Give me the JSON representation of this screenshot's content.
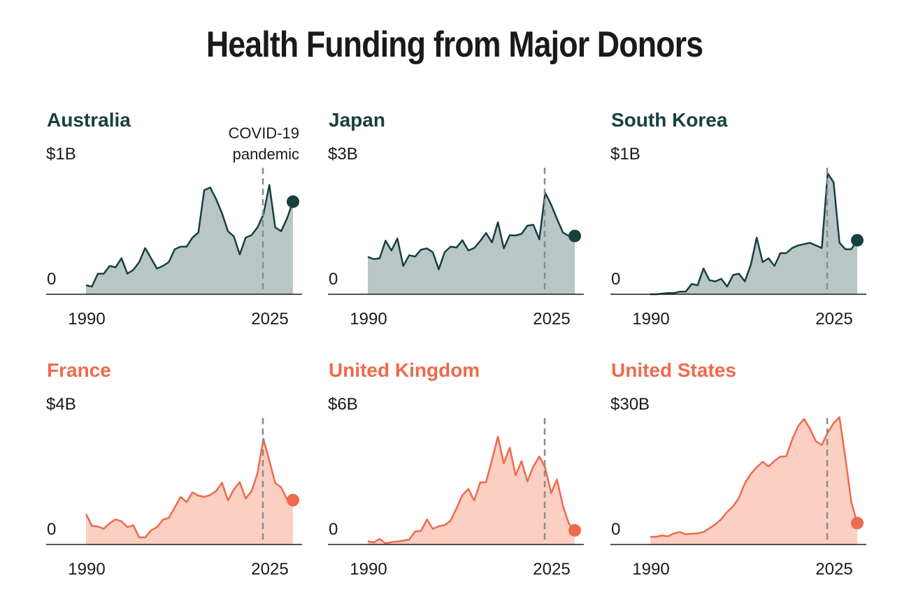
{
  "title": "Health Funding from Major Donors",
  "colors": {
    "dark_line": "#17403f",
    "dark_fill": "#b8c7c6",
    "orange_line": "#ee6a4c",
    "orange_fill": "#fccfc3",
    "guide": "#8c8c8c",
    "axis": "#1a1a1a"
  },
  "chart_data": [
    {
      "type": "area",
      "title": "Australia",
      "ymax_label": "$1B",
      "ymin_label": "0",
      "x_ticks": [
        "1990",
        "2025"
      ],
      "theme": "dark",
      "ylim": [
        0,
        1.0
      ],
      "annotation": {
        "x": 2020,
        "lines": [
          "COVID-19",
          "pandemic"
        ]
      },
      "x": [
        1990,
        1991,
        1992,
        1993,
        1994,
        1995,
        1996,
        1997,
        1998,
        1999,
        2000,
        2001,
        2002,
        2003,
        2004,
        2005,
        2006,
        2007,
        2008,
        2009,
        2010,
        2011,
        2012,
        2013,
        2014,
        2015,
        2016,
        2017,
        2018,
        2019,
        2020,
        2021,
        2022,
        2023,
        2024,
        2025
      ],
      "values": [
        0.07,
        0.06,
        0.16,
        0.16,
        0.22,
        0.21,
        0.28,
        0.16,
        0.19,
        0.25,
        0.36,
        0.28,
        0.2,
        0.22,
        0.25,
        0.35,
        0.37,
        0.37,
        0.44,
        0.48,
        0.81,
        0.83,
        0.74,
        0.63,
        0.49,
        0.45,
        0.31,
        0.44,
        0.46,
        0.52,
        0.62,
        0.85,
        0.52,
        0.49,
        0.59,
        0.72
      ]
    },
    {
      "type": "area",
      "title": "Japan",
      "ymax_label": "$3B",
      "ymin_label": "0",
      "x_ticks": [
        "1990",
        "2025"
      ],
      "theme": "dark",
      "ylim": [
        0,
        3.0
      ],
      "x": [
        1990,
        1991,
        1992,
        1993,
        1994,
        1995,
        1996,
        1997,
        1998,
        1999,
        2000,
        2001,
        2002,
        2003,
        2004,
        2005,
        2006,
        2007,
        2008,
        2009,
        2010,
        2011,
        2012,
        2013,
        2014,
        2015,
        2016,
        2017,
        2018,
        2019,
        2020,
        2021,
        2022,
        2023,
        2024,
        2025
      ],
      "values": [
        0.87,
        0.82,
        0.84,
        1.25,
        1.02,
        1.3,
        0.66,
        0.91,
        0.88,
        1.04,
        1.07,
        0.98,
        0.58,
        0.98,
        1.11,
        1.09,
        1.26,
        1.02,
        1.08,
        1.24,
        1.43,
        1.21,
        1.68,
        1.07,
        1.38,
        1.37,
        1.41,
        1.6,
        1.62,
        1.28,
        2.37,
        2.09,
        1.76,
        1.44,
        1.36,
        1.36
      ]
    },
    {
      "type": "area",
      "title": "South Korea",
      "ymax_label": "$1B",
      "ymin_label": "0",
      "x_ticks": [
        "1990",
        "2025"
      ],
      "theme": "dark",
      "ylim": [
        0,
        1.0
      ],
      "x": [
        1990,
        1991,
        1992,
        1993,
        1994,
        1995,
        1996,
        1997,
        1998,
        1999,
        2000,
        2001,
        2002,
        2003,
        2004,
        2005,
        2006,
        2007,
        2008,
        2009,
        2010,
        2011,
        2012,
        2013,
        2014,
        2015,
        2016,
        2017,
        2018,
        2019,
        2020,
        2021,
        2022,
        2023,
        2024,
        2025
      ],
      "values": [
        0.0,
        0.0,
        0.005,
        0.01,
        0.01,
        0.02,
        0.02,
        0.08,
        0.07,
        0.2,
        0.11,
        0.1,
        0.12,
        0.06,
        0.15,
        0.16,
        0.1,
        0.23,
        0.44,
        0.25,
        0.28,
        0.22,
        0.32,
        0.32,
        0.36,
        0.38,
        0.39,
        0.4,
        0.38,
        0.36,
        0.94,
        0.87,
        0.4,
        0.35,
        0.35,
        0.42
      ]
    },
    {
      "type": "area",
      "title": "France",
      "ymax_label": "$4B",
      "ymin_label": "0",
      "x_ticks": [
        "1990",
        "2025"
      ],
      "theme": "orange",
      "ylim": [
        0,
        4.0
      ],
      "x": [
        1990,
        1991,
        1992,
        1993,
        1994,
        1995,
        1996,
        1997,
        1998,
        1999,
        2000,
        2001,
        2002,
        2003,
        2004,
        2005,
        2006,
        2007,
        2008,
        2009,
        2010,
        2011,
        2012,
        2013,
        2014,
        2015,
        2016,
        2017,
        2018,
        2019,
        2020,
        2021,
        2022,
        2023,
        2024,
        2025
      ],
      "values": [
        0.95,
        0.58,
        0.56,
        0.49,
        0.66,
        0.78,
        0.72,
        0.54,
        0.6,
        0.22,
        0.22,
        0.44,
        0.54,
        0.77,
        0.83,
        1.15,
        1.48,
        1.32,
        1.62,
        1.52,
        1.48,
        1.54,
        1.66,
        1.92,
        1.37,
        1.71,
        1.94,
        1.43,
        1.66,
        2.22,
        3.29,
        2.61,
        1.91,
        1.78,
        1.4,
        1.38
      ]
    },
    {
      "type": "area",
      "title": "United Kingdom",
      "ymax_label": "$6B",
      "ymin_label": "0",
      "x_ticks": [
        "1990",
        "2025"
      ],
      "theme": "orange",
      "ylim": [
        0,
        6.0
      ],
      "x": [
        1990,
        1991,
        1992,
        1993,
        1994,
        1995,
        1996,
        1997,
        1998,
        1999,
        2000,
        2001,
        2002,
        2003,
        2004,
        2005,
        2006,
        2007,
        2008,
        2009,
        2010,
        2011,
        2012,
        2013,
        2014,
        2015,
        2016,
        2017,
        2018,
        2019,
        2020,
        2021,
        2022,
        2023,
        2024,
        2025
      ],
      "values": [
        0.15,
        0.09,
        0.26,
        0.05,
        0.11,
        0.14,
        0.18,
        0.23,
        0.61,
        0.63,
        1.17,
        0.73,
        0.85,
        0.9,
        1.11,
        1.69,
        2.3,
        2.59,
        2.05,
        2.89,
        2.91,
        3.94,
        5.03,
        3.79,
        4.52,
        3.23,
        3.89,
        2.94,
        3.64,
        4.11,
        3.58,
        2.4,
        3.03,
        1.8,
        0.98,
        0.66
      ]
    },
    {
      "type": "area",
      "title": "United States",
      "ymax_label": "$30B",
      "ymin_label": "0",
      "x_ticks": [
        "1990",
        "2025"
      ],
      "theme": "orange",
      "ylim": [
        0,
        30.0
      ],
      "x": [
        1990,
        1991,
        1992,
        1993,
        1994,
        1995,
        1996,
        1997,
        1998,
        1999,
        2000,
        2001,
        2002,
        2003,
        2004,
        2005,
        2006,
        2007,
        2008,
        2009,
        2010,
        2011,
        2012,
        2013,
        2014,
        2015,
        2016,
        2017,
        2018,
        2019,
        2020,
        2021,
        2022,
        2023,
        2024,
        2025
      ],
      "values": [
        1.8,
        1.8,
        2.1,
        1.9,
        2.6,
        2.9,
        2.4,
        2.5,
        2.6,
        2.9,
        3.8,
        4.7,
        5.9,
        7.6,
        8.9,
        10.9,
        14.3,
        16.5,
        18.0,
        19.3,
        18.2,
        19.5,
        20.5,
        20.6,
        24.5,
        27.6,
        29.3,
        27.0,
        24.1,
        23.2,
        26.1,
        28.3,
        29.7,
        20.1,
        9.9,
        5.0
      ]
    }
  ]
}
